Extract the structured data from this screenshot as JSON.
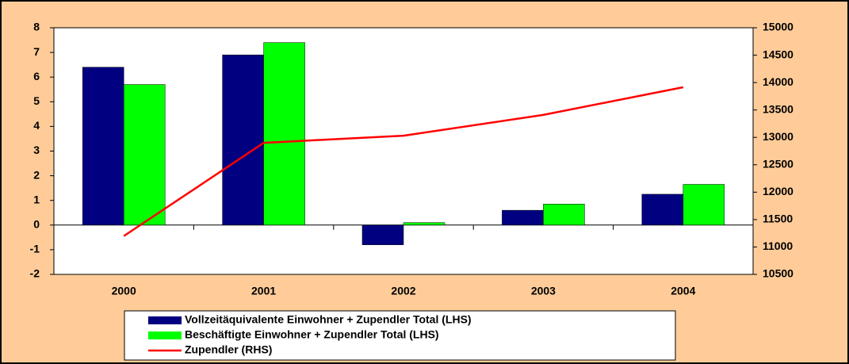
{
  "chart_data": {
    "type": "bar-line",
    "categories": [
      "2000",
      "2001",
      "2002",
      "2003",
      "2004"
    ],
    "series": [
      {
        "name": "Vollzeitäquivalente Einwohner + Zupendler Total (LHS)",
        "type": "bar",
        "color": "#000080",
        "values": [
          6.4,
          6.9,
          -0.8,
          0.6,
          1.25
        ]
      },
      {
        "name": "Beschäftigte Einwohner + Zupendler Total (LHS)",
        "type": "bar",
        "color": "#00ff00",
        "values": [
          5.7,
          7.4,
          0.1,
          0.85,
          1.65
        ]
      },
      {
        "name": "Zupendler (RHS)",
        "type": "line",
        "axis": "y2",
        "color": "#ff0000",
        "values": [
          11200,
          12900,
          13030,
          13410,
          13915
        ]
      }
    ],
    "ylim": [
      -2,
      8
    ],
    "yticks": [
      -2,
      -1,
      0,
      1,
      2,
      3,
      4,
      5,
      6,
      7,
      8
    ],
    "y2lim": [
      10500,
      15000
    ],
    "y2ticks": [
      10500,
      11000,
      11500,
      12000,
      12500,
      13000,
      13500,
      14000,
      14500,
      15000
    ],
    "grid": false,
    "legend": "bottom"
  }
}
